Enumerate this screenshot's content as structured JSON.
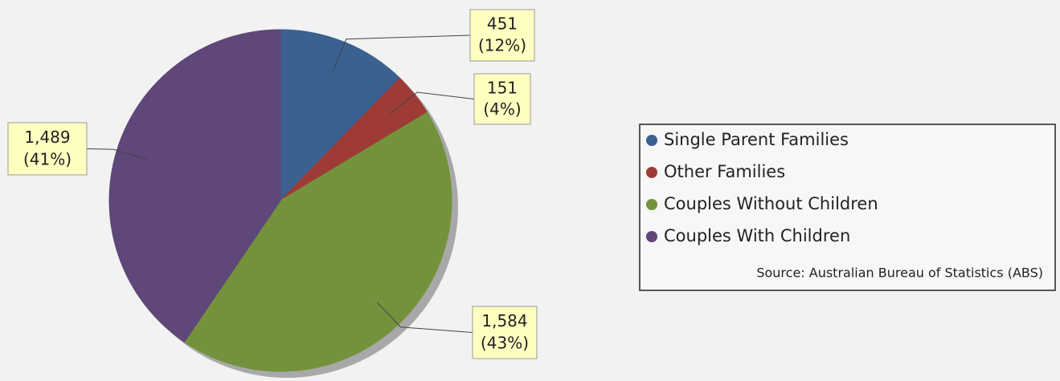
{
  "chart_data": {
    "type": "pie",
    "categories": [
      "Single Parent Families",
      "Other Families",
      "Couples Without Children",
      "Couples With Children"
    ],
    "values": [
      451,
      151,
      1584,
      1489
    ],
    "value_labels": [
      "451",
      "151",
      "1,584",
      "1,489"
    ],
    "percent_labels": [
      "(12%)",
      "(4%)",
      "(43%)",
      "(41%)"
    ],
    "colors": [
      "#3a6190",
      "#9e3b36",
      "#74923b",
      "#5f4779"
    ],
    "source": "Source: Australian Bureau of Statistics (ABS)",
    "legend": "right"
  }
}
